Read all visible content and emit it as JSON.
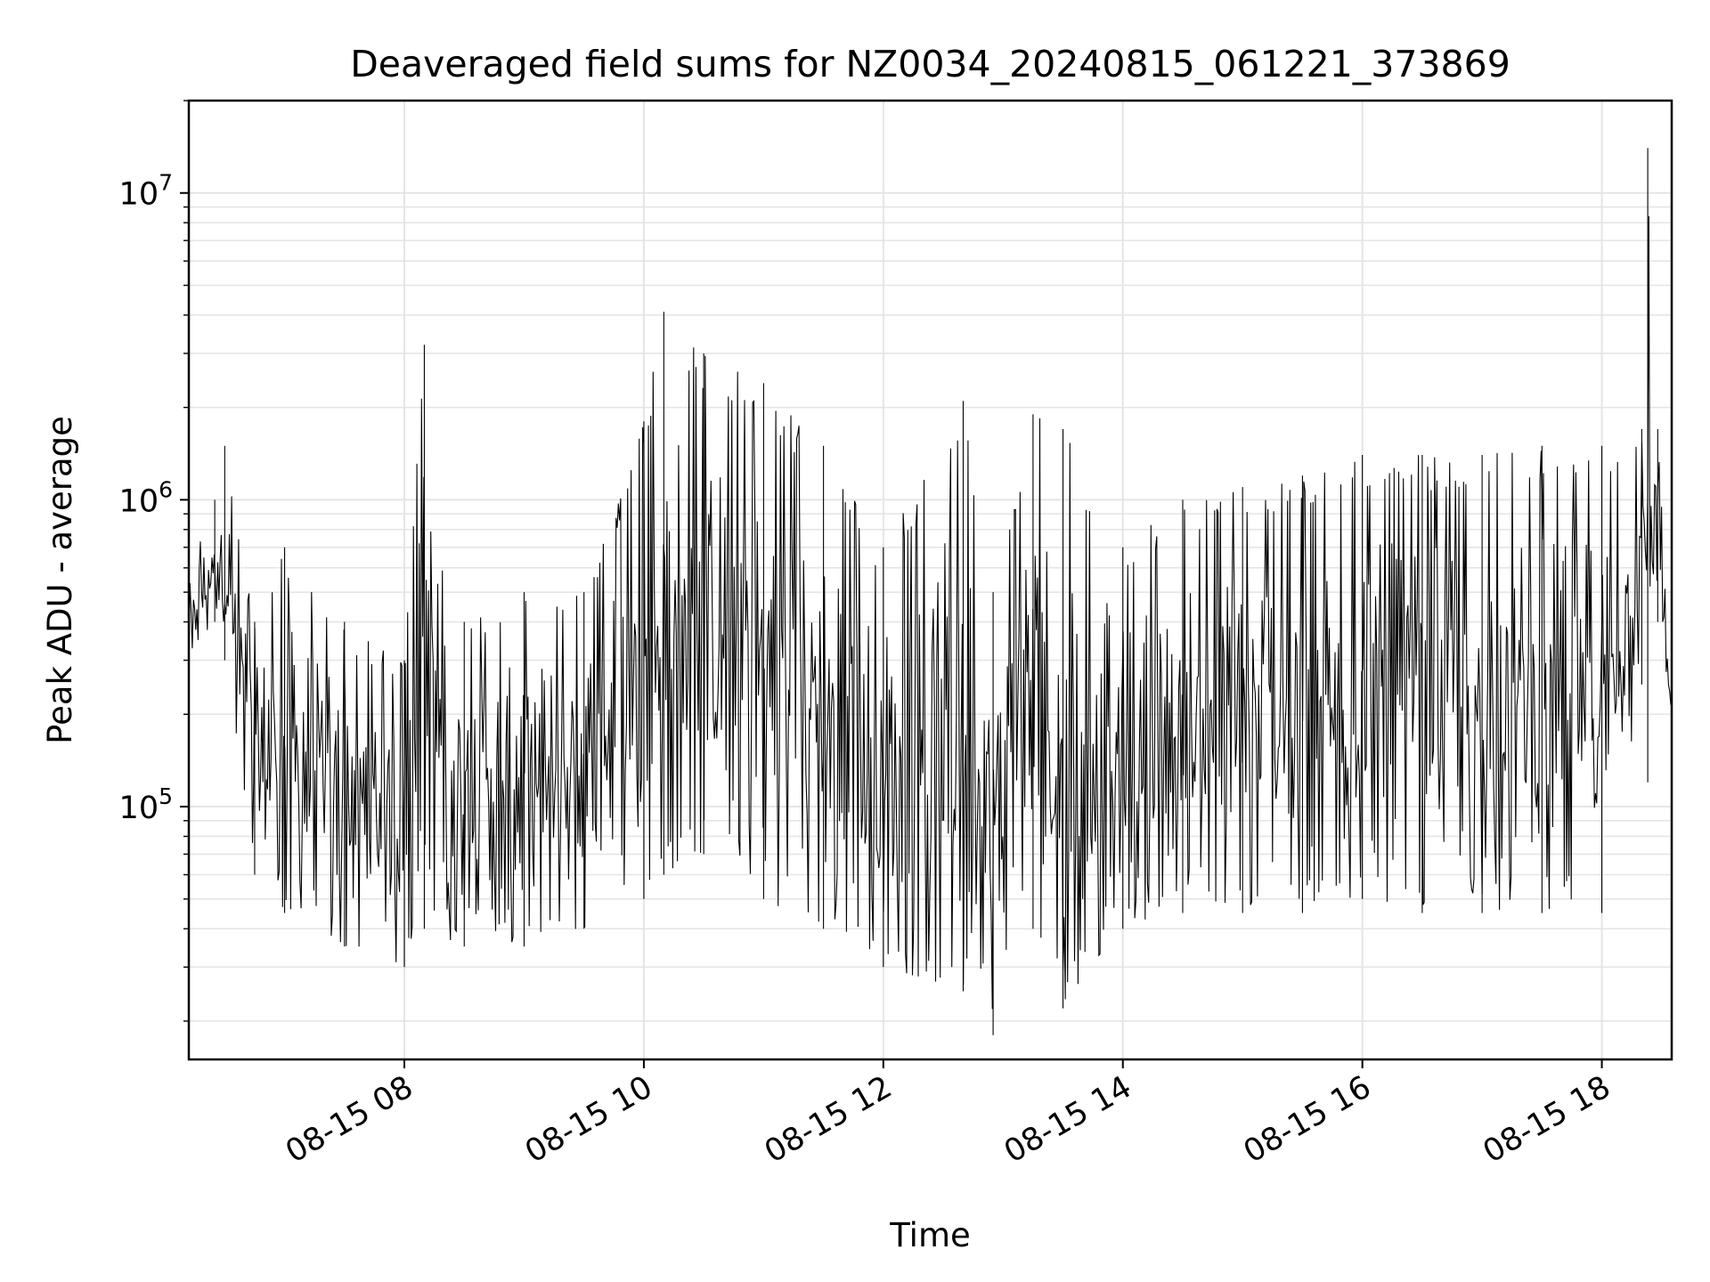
{
  "chart_data": {
    "type": "line",
    "title": "Deaveraged field sums for NZ0034_20240815_061221_373869",
    "xlabel": "Time",
    "ylabel": "Peak ADU - average",
    "yscale": "log",
    "ylim": [
      15000,
      20000000
    ],
    "xlim": [
      "2024-08-15 06:12",
      "2024-08-15 18:35"
    ],
    "grid": true,
    "line_color": "#000000",
    "grid_color": "#e5e5e5",
    "x_ticks": [
      {
        "value": "2024-08-15 08:00",
        "label": "08-15 08"
      },
      {
        "value": "2024-08-15 10:00",
        "label": "08-15 10"
      },
      {
        "value": "2024-08-15 12:00",
        "label": "08-15 12"
      },
      {
        "value": "2024-08-15 14:00",
        "label": "08-15 14"
      },
      {
        "value": "2024-08-15 16:00",
        "label": "08-15 16"
      },
      {
        "value": "2024-08-15 18:00",
        "label": "08-15 18"
      }
    ],
    "y_ticks": [
      {
        "value": 100000,
        "base": "10",
        "exp": "5"
      },
      {
        "value": 1000000,
        "base": "10",
        "exp": "6"
      },
      {
        "value": 10000000,
        "base": "10",
        "exp": "7"
      }
    ],
    "envelope_note": "Dense oscillating series; values described by low/high envelope per time window",
    "series": [
      {
        "envelope": [
          {
            "t": "2024-08-15 06:12",
            "low": 300000,
            "high": 600000
          },
          {
            "t": "2024-08-15 06:25",
            "low": 400000,
            "high": 1000000
          },
          {
            "t": "2024-08-15 06:30",
            "low": 300000,
            "high": 1500000
          },
          {
            "t": "2024-08-15 06:45",
            "low": 60000,
            "high": 400000
          },
          {
            "t": "2024-08-15 07:00",
            "low": 45000,
            "high": 700000
          },
          {
            "t": "2024-08-15 07:30",
            "low": 35000,
            "high": 400000
          },
          {
            "t": "2024-08-15 08:00",
            "low": 30000,
            "high": 300000
          },
          {
            "t": "2024-08-15 08:10",
            "low": 40000,
            "high": 3200000
          },
          {
            "t": "2024-08-15 08:30",
            "low": 35000,
            "high": 400000
          },
          {
            "t": "2024-08-15 09:00",
            "low": 35000,
            "high": 500000
          },
          {
            "t": "2024-08-15 09:30",
            "low": 40000,
            "high": 500000
          },
          {
            "t": "2024-08-15 10:00",
            "low": 50000,
            "high": 1800000
          },
          {
            "t": "2024-08-15 10:10",
            "low": 60000,
            "high": 4100000
          },
          {
            "t": "2024-08-15 10:30",
            "low": 70000,
            "high": 3000000
          },
          {
            "t": "2024-08-15 11:00",
            "low": 50000,
            "high": 2400000
          },
          {
            "t": "2024-08-15 11:30",
            "low": 40000,
            "high": 1500000
          },
          {
            "t": "2024-08-15 12:00",
            "low": 30000,
            "high": 700000
          },
          {
            "t": "2024-08-15 12:40",
            "low": 25000,
            "high": 2100000
          },
          {
            "t": "2024-08-15 12:55",
            "low": 18000,
            "high": 500000
          },
          {
            "t": "2024-08-15 13:15",
            "low": 40000,
            "high": 1900000
          },
          {
            "t": "2024-08-15 13:30",
            "low": 22000,
            "high": 1700000
          },
          {
            "t": "2024-08-15 14:00",
            "low": 40000,
            "high": 700000
          },
          {
            "t": "2024-08-15 14:30",
            "low": 45000,
            "high": 1000000
          },
          {
            "t": "2024-08-15 15:00",
            "low": 45000,
            "high": 1100000
          },
          {
            "t": "2024-08-15 15:30",
            "low": 45000,
            "high": 1200000
          },
          {
            "t": "2024-08-15 16:00",
            "low": 50000,
            "high": 1400000
          },
          {
            "t": "2024-08-15 16:30",
            "low": 45000,
            "high": 1400000
          },
          {
            "t": "2024-08-15 17:00",
            "low": 45000,
            "high": 1400000
          },
          {
            "t": "2024-08-15 17:30",
            "low": 45000,
            "high": 1500000
          },
          {
            "t": "2024-08-15 18:00",
            "low": 45000,
            "high": 1500000
          },
          {
            "t": "2024-08-15 18:20",
            "low": 250000,
            "high": 1700000
          },
          {
            "t": "2024-08-15 18:23",
            "low": 120000,
            "high": 14000000
          },
          {
            "t": "2024-08-15 18:28",
            "low": 400000,
            "high": 1700000
          },
          {
            "t": "2024-08-15 18:35",
            "low": 150000,
            "high": 250000
          }
        ]
      }
    ]
  }
}
